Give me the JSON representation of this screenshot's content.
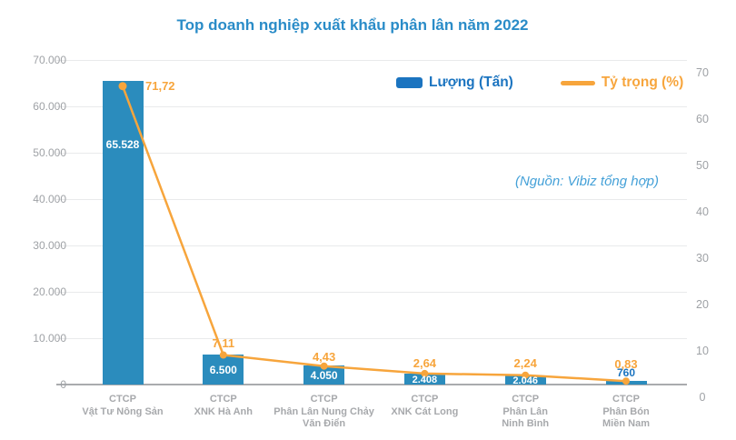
{
  "chart_data": {
    "type": "combo-bar-line",
    "title": "Top doanh nghiệp xuất khẩu phân lân năm 2022",
    "source_note": "(Nguồn: Vibiz tổng hợp)",
    "categories": [
      [
        "CTCP",
        "Vật Tư Nông Sản"
      ],
      [
        "CTCP",
        "XNK Hà Anh"
      ],
      [
        "CTCP",
        "Phân Lân Nung Chảy",
        "Văn Điển"
      ],
      [
        "CTCP",
        "XNK Cát Long"
      ],
      [
        "CTCP",
        "Phân Lân",
        "Ninh Bình"
      ],
      [
        "CTCP",
        "Phân Bón",
        "Miền Nam"
      ]
    ],
    "series": [
      {
        "name": "Lượng (Tấn)",
        "type": "bar",
        "color": "#2b8cbd",
        "values": [
          65528,
          6500,
          4050,
          2408,
          2046,
          760
        ],
        "labels": [
          "65.528",
          "6.500",
          "4.050",
          "2.408",
          "2.046",
          "760"
        ]
      },
      {
        "name": "Tỷ trọng (%)",
        "type": "line",
        "color": "#f7a53c",
        "values": [
          71.72,
          7.11,
          4.43,
          2.64,
          2.24,
          0.83
        ],
        "labels": [
          "71,72",
          "7,11",
          "4,43",
          "2,64",
          "2,24",
          "0,83"
        ]
      }
    ],
    "left_axis": {
      "ticks": [
        "70.000",
        "60.000",
        "50.000",
        "40.000",
        "30.000",
        "20.000",
        "10.000",
        "0"
      ],
      "max": 70000
    },
    "right_axis": {
      "ticks": [
        "70",
        "60",
        "50",
        "40",
        "30",
        "20",
        "10",
        "0"
      ],
      "max": 70
    },
    "legend": [
      {
        "label": "Lượng (Tấn)",
        "marker": "bar",
        "color": "#1b74c0"
      },
      {
        "label": "Tỷ trọng (%)",
        "marker": "line",
        "color": "#f7a53c"
      }
    ],
    "grid": true,
    "legend_position": "top-right"
  },
  "colors": {
    "title": "#2a8cc8",
    "source": "#45a1d8",
    "axis_text": "#9fa2a6",
    "category_text": "#a7a9ac",
    "gridline": "#e9eaeb",
    "baseline": "#a9abae",
    "bar_label_on_bar": "#ffffff",
    "bar_label_above": "#1b74c0"
  }
}
